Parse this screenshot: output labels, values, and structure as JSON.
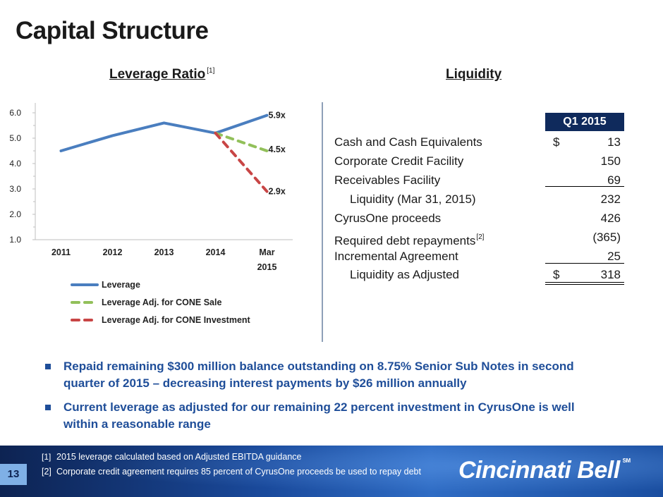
{
  "title": "Capital Structure",
  "chart_heading": "Leverage Ratio",
  "chart_heading_note": "[1]",
  "chart_data": {
    "type": "line",
    "title": "Leverage Ratio",
    "categories": [
      "2011",
      "2012",
      "2013",
      "2014",
      "Mar 2015"
    ],
    "ylim": [
      1.0,
      6.0
    ],
    "yticks": [
      "1.0",
      "2.0",
      "3.0",
      "4.0",
      "5.0",
      "6.0"
    ],
    "series": [
      {
        "name": "Leverage",
        "color": "#4a7ebf",
        "dashed": false,
        "values": [
          4.5,
          5.1,
          5.6,
          5.2,
          5.9
        ]
      },
      {
        "name": "Leverage Adj. for CONE Sale",
        "color": "#92c05a",
        "dashed": true,
        "values": [
          null,
          null,
          null,
          5.2,
          4.5
        ]
      },
      {
        "name": "Leverage Adj. for CONE Investment",
        "color": "#c84545",
        "dashed": true,
        "values": [
          null,
          null,
          null,
          5.2,
          2.9
        ]
      }
    ],
    "data_labels": [
      "5.9x",
      "4.5x",
      "2.9x"
    ],
    "legend_position": "bottom"
  },
  "liquidity": {
    "heading": "Liquidity",
    "column_header": "Q1 2015",
    "rows": [
      {
        "label": "Cash and Cash Equivalents",
        "currency": "$",
        "value": "13"
      },
      {
        "label": "Corporate Credit Facility",
        "value": "150"
      },
      {
        "label": "Receivables Facility",
        "value": "69"
      },
      {
        "label": "Liquidity (Mar 31, 2015)",
        "value": "232"
      },
      {
        "label": "CyrusOne proceeds",
        "value": "426"
      },
      {
        "label": "Required debt repayments",
        "note": "[2]",
        "value": "(365)"
      },
      {
        "label": "Incremental Agreement",
        "value": "25"
      },
      {
        "label": "Liquidity as Adjusted",
        "currency": "$",
        "value": "318"
      }
    ]
  },
  "bullets": [
    "Repaid remaining $300 million balance outstanding on 8.75% Senior Sub Notes in second quarter of 2015 – decreasing interest payments by $26 million annually",
    "Current leverage as adjusted for our remaining 22 percent investment in CyrusOne is well within a reasonable range"
  ],
  "footer": {
    "page_number": "13",
    "footnotes": [
      {
        "marker": "[1]",
        "text": "2015 leverage calculated based on Adjusted EBITDA guidance"
      },
      {
        "marker": "[2]",
        "text": "Corporate credit agreement requires 85 percent of CyrusOne proceeds be used to repay debt"
      }
    ],
    "brand": "Cincinnati Bell",
    "brand_mark": "SM"
  }
}
